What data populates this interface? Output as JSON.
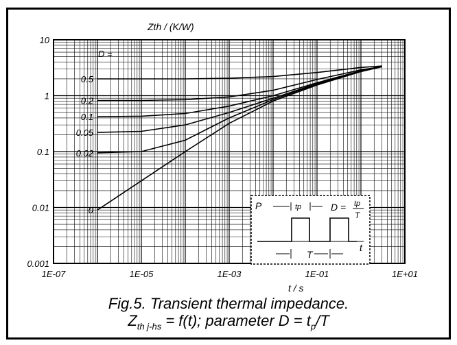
{
  "chart_data": {
    "type": "line",
    "xscale": "log",
    "yscale": "log",
    "xlim": [
      1e-07,
      10
    ],
    "ylim": [
      0.001,
      10
    ],
    "ylabel": "Zth / (K/W)",
    "xlabel": "t / s",
    "x_ticks": [
      "1E-07",
      "1E-05",
      "1E-03",
      "1E-01",
      "1E+01"
    ],
    "y_ticks": [
      "0.001",
      "0.01",
      "0.1",
      "1",
      "10"
    ],
    "param_header": "D =",
    "series": [
      {
        "name": "0.5",
        "x": [
          1e-06,
          1e-05,
          0.0001,
          0.001,
          0.01,
          0.1,
          1,
          3
        ],
        "y": [
          2.0,
          2.0,
          2.0,
          2.05,
          2.2,
          2.6,
          3.2,
          3.4
        ]
      },
      {
        "name": "0.2",
        "x": [
          1e-06,
          1e-05,
          0.0001,
          0.001,
          0.01,
          0.1,
          1,
          3
        ],
        "y": [
          0.82,
          0.82,
          0.85,
          0.95,
          1.25,
          1.95,
          2.9,
          3.3
        ]
      },
      {
        "name": "0.1",
        "x": [
          1e-06,
          1e-05,
          0.0001,
          0.001,
          0.01,
          0.1,
          1,
          3
        ],
        "y": [
          0.42,
          0.43,
          0.48,
          0.65,
          1.0,
          1.7,
          2.8,
          3.3
        ]
      },
      {
        "name": "0.05",
        "x": [
          1e-06,
          1e-05,
          0.0001,
          0.001,
          0.01,
          0.1,
          1,
          3
        ],
        "y": [
          0.22,
          0.23,
          0.3,
          0.5,
          0.9,
          1.65,
          2.75,
          3.3
        ]
      },
      {
        "name": "0.02",
        "x": [
          1e-06,
          1e-05,
          0.0001,
          0.001,
          0.01,
          0.1,
          1,
          3
        ],
        "y": [
          0.095,
          0.1,
          0.16,
          0.4,
          0.85,
          1.6,
          2.7,
          3.3
        ]
      },
      {
        "name": "0",
        "x": [
          1e-06,
          1e-05,
          0.0001,
          0.001,
          0.01,
          0.1,
          1,
          3
        ],
        "y": [
          0.009,
          0.03,
          0.1,
          0.32,
          0.8,
          1.55,
          2.7,
          3.3
        ]
      }
    ],
    "inset": {
      "p_label": "P",
      "tp_label": "tp",
      "formula_left": "D =",
      "formula_num": "tp",
      "formula_den": "T",
      "t_label": "t",
      "period_label": "T"
    }
  },
  "caption": {
    "line1": "Fig.5.  Transient thermal impedance.",
    "line2_main": "Z",
    "line2_sub": "th j-hs",
    "line2_rest": " = f(t); parameter D = t",
    "line2_sub2": "p",
    "line2_end": "/T"
  }
}
